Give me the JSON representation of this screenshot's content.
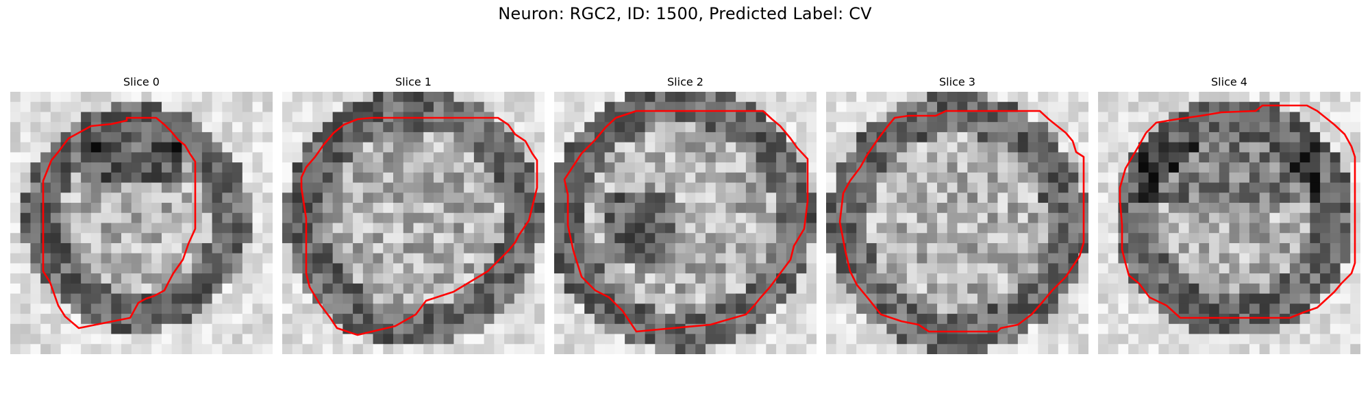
{
  "figure": {
    "title": "Neuron: RGC2, ID: 1500, Predicted Label: CV"
  },
  "panels": [
    {
      "title": "Slice 0"
    },
    {
      "title": "Slice 1"
    },
    {
      "title": "Slice 2"
    },
    {
      "title": "Slice 3"
    },
    {
      "title": "Slice 4"
    }
  ],
  "colors": {
    "contour": "#ff0000",
    "colormap": "gray"
  }
}
